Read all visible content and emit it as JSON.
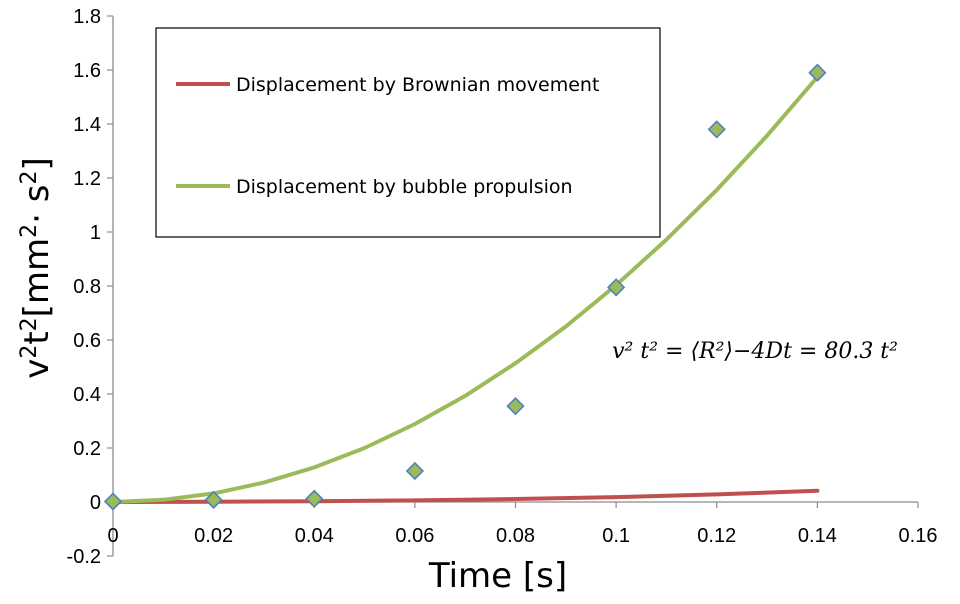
{
  "chart_data": {
    "type": "scatter",
    "xlabel": "Time [s]",
    "ylabel_parts": [
      "v",
      "2",
      "t",
      "2",
      "[mm",
      "2",
      "· s",
      "2",
      "]"
    ],
    "xlim": [
      0,
      0.16
    ],
    "ylim": [
      -0.2,
      1.8
    ],
    "xticks": [
      0,
      0.02,
      0.04,
      0.06,
      0.08,
      0.1,
      0.12,
      0.14,
      0.16
    ],
    "xtick_labels": [
      "0",
      "0.02",
      "0.04",
      "0.06",
      "0.08",
      "0.1",
      "0.12",
      "0.14",
      "0.16"
    ],
    "yticks": [
      -0.2,
      0,
      0.2,
      0.4,
      0.6,
      0.8,
      1,
      1.2,
      1.4,
      1.6,
      1.8
    ],
    "ytick_labels": [
      "-0.2",
      "0",
      "0.2",
      "0.4",
      "0.6",
      "0.8",
      "1",
      "1.2",
      "1.4",
      "1.6",
      "1.8"
    ],
    "grid": false,
    "legend_position": "top-left",
    "series": [
      {
        "name": "Displacement by Brownian movement",
        "kind": "line",
        "color": "#c0504d",
        "x": [
          0,
          0.02,
          0.04,
          0.06,
          0.08,
          0.1,
          0.12,
          0.14
        ],
        "y": [
          0,
          0.001,
          0.003,
          0.006,
          0.011,
          0.018,
          0.028,
          0.042
        ]
      },
      {
        "name": "Displacement by bubble propulsion",
        "kind": "line",
        "color": "#9bbb59",
        "x": [
          0,
          0.01,
          0.02,
          0.03,
          0.04,
          0.05,
          0.06,
          0.07,
          0.08,
          0.09,
          0.1,
          0.11,
          0.12,
          0.13,
          0.14
        ],
        "y": [
          0,
          0.008,
          0.032,
          0.072,
          0.128,
          0.2,
          0.289,
          0.393,
          0.514,
          0.65,
          0.803,
          0.972,
          1.156,
          1.357,
          1.574
        ]
      },
      {
        "kind": "markers",
        "fill": "#9bbb59",
        "stroke": "#4f81bd",
        "x": [
          0,
          0.02,
          0.04,
          0.06,
          0.08,
          0.1,
          0.12,
          0.14
        ],
        "y": [
          0.002,
          0.008,
          0.012,
          0.115,
          0.355,
          0.795,
          1.38,
          1.59
        ]
      }
    ],
    "annotation": {
      "text": "v² t² = ⟨R²⟩−4Dt = 80.3 t²",
      "x": 0.1,
      "y": 0.56
    }
  }
}
